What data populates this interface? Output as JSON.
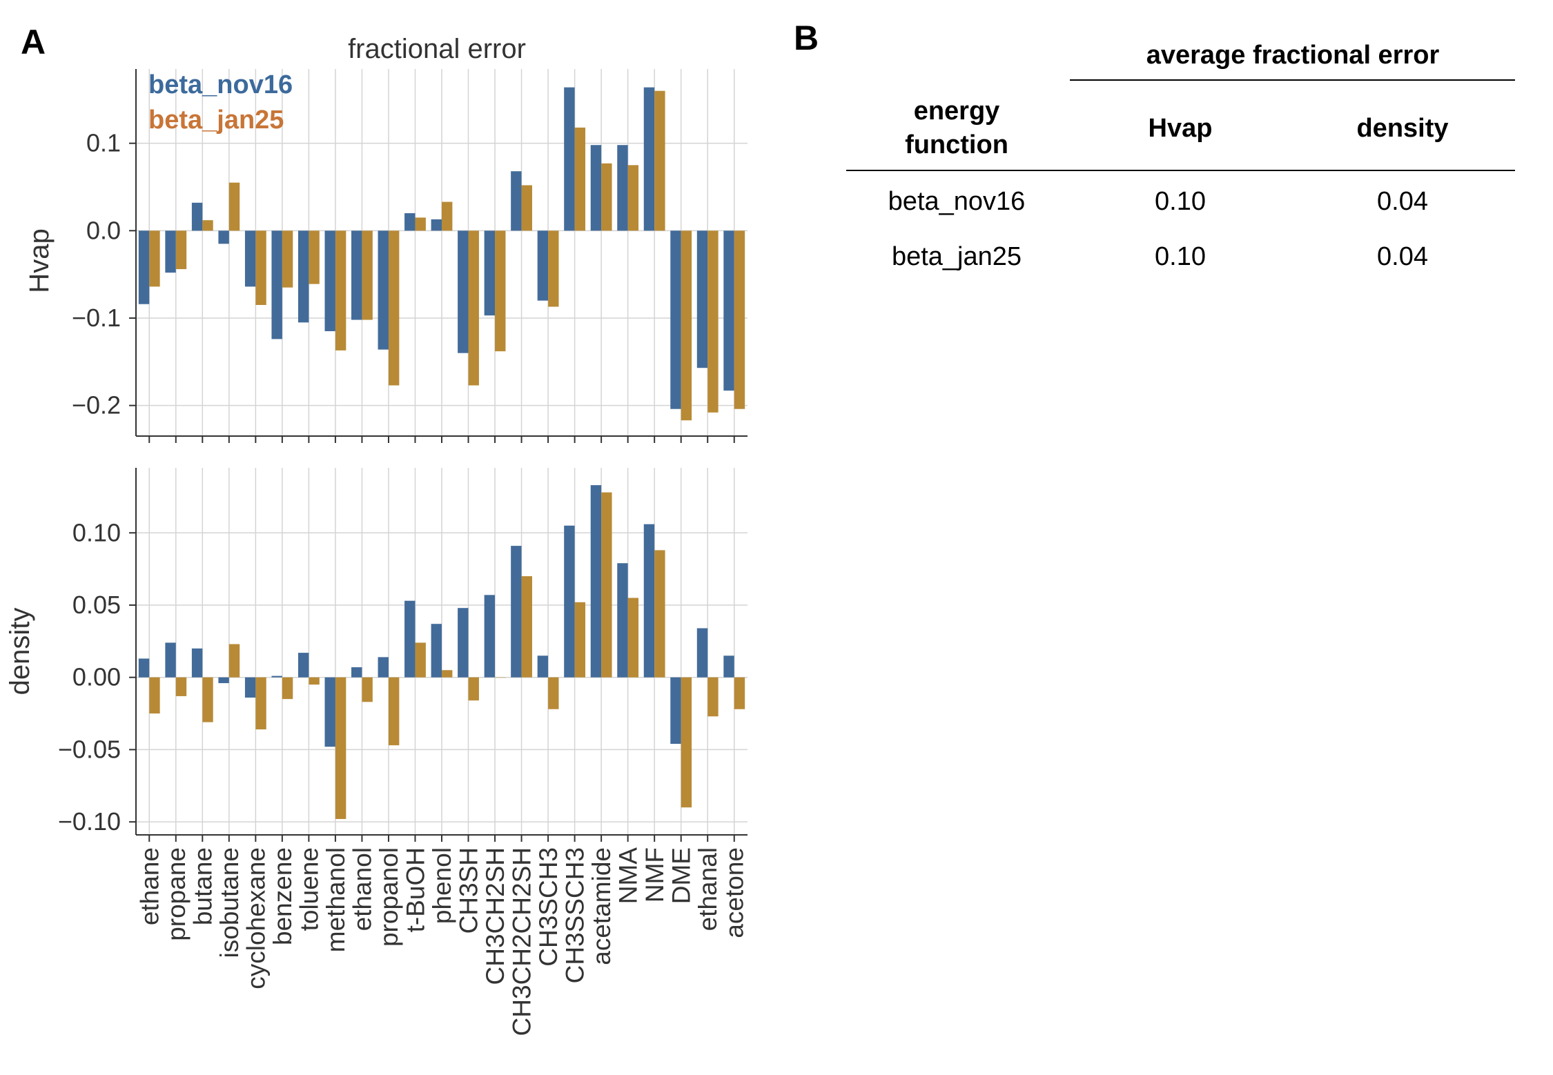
{
  "panels": {
    "a_label": "A",
    "b_label": "B"
  },
  "chart_data": {
    "type": "bar",
    "title": "fractional error",
    "categories": [
      "ethane",
      "propane",
      "butane",
      "isobutane",
      "cyclohexane",
      "benzene",
      "toluene",
      "methanol",
      "ethanol",
      "propanol",
      "t-BuOH",
      "phenol",
      "CH3SH",
      "CH3CH2SH",
      "CH3CH2CH2SH",
      "CH3SCH3",
      "CH3SSCH3",
      "acetamide",
      "NMA",
      "NMF",
      "DME",
      "ethanal",
      "acetone"
    ],
    "legend": [
      {
        "name": "beta_nov16",
        "color": "#3c6a9c"
      },
      {
        "name": "beta_jan25",
        "color": "#c88a33"
      }
    ],
    "colors": {
      "beta_nov16": "#426b99",
      "beta_jan25": "#b88a36"
    },
    "subplots": [
      {
        "ylabel": "Hvap",
        "ylim": [
          -0.235,
          0.185
        ],
        "yticks": [
          0.1,
          0.0,
          -0.1,
          -0.2
        ],
        "ytick_labels": [
          "0.1",
          "0.0",
          "−0.1",
          "−0.2"
        ],
        "series": [
          {
            "name": "beta_nov16",
            "values": [
              -0.084,
              -0.048,
              0.032,
              -0.015,
              -0.064,
              -0.124,
              -0.105,
              -0.115,
              -0.102,
              -0.136,
              0.02,
              0.013,
              -0.14,
              -0.097,
              0.068,
              -0.08,
              0.164,
              0.098,
              0.098,
              0.164,
              -0.204,
              -0.157,
              -0.183
            ]
          },
          {
            "name": "beta_jan25",
            "values": [
              -0.064,
              -0.044,
              0.012,
              0.055,
              -0.085,
              -0.065,
              -0.061,
              -0.137,
              -0.102,
              -0.177,
              0.015,
              0.033,
              -0.177,
              -0.138,
              0.052,
              -0.087,
              0.118,
              0.077,
              0.075,
              0.16,
              -0.217,
              -0.208,
              -0.204
            ]
          }
        ]
      },
      {
        "ylabel": "density",
        "ylim": [
          -0.109,
          0.145
        ],
        "yticks": [
          0.1,
          0.05,
          0.0,
          -0.05,
          -0.1
        ],
        "ytick_labels": [
          "0.10",
          "0.05",
          "0.00",
          "−0.05",
          "−0.10"
        ],
        "series": [
          {
            "name": "beta_nov16",
            "values": [
              0.013,
              0.024,
              0.02,
              -0.004,
              -0.014,
              0.001,
              0.017,
              -0.048,
              0.007,
              0.014,
              0.053,
              0.037,
              0.048,
              0.057,
              0.091,
              0.015,
              0.105,
              0.133,
              0.079,
              0.106,
              -0.046,
              0.034,
              0.015
            ]
          },
          {
            "name": "beta_jan25",
            "values": [
              -0.025,
              -0.013,
              -0.031,
              0.023,
              -0.036,
              -0.015,
              -0.005,
              -0.098,
              -0.017,
              -0.047,
              0.024,
              0.005,
              -0.016,
              0.0,
              0.07,
              -0.022,
              0.052,
              0.128,
              0.055,
              0.088,
              -0.09,
              -0.027,
              -0.022
            ]
          }
        ]
      }
    ]
  },
  "table": {
    "header_group": "average fractional error",
    "row_header": [
      "energy",
      "function"
    ],
    "columns": [
      "Hvap",
      "density"
    ],
    "rows": [
      {
        "name": "beta_nov16",
        "hvap": "0.10",
        "density": "0.04"
      },
      {
        "name": "beta_jan25",
        "hvap": "0.10",
        "density": "0.04"
      }
    ]
  }
}
